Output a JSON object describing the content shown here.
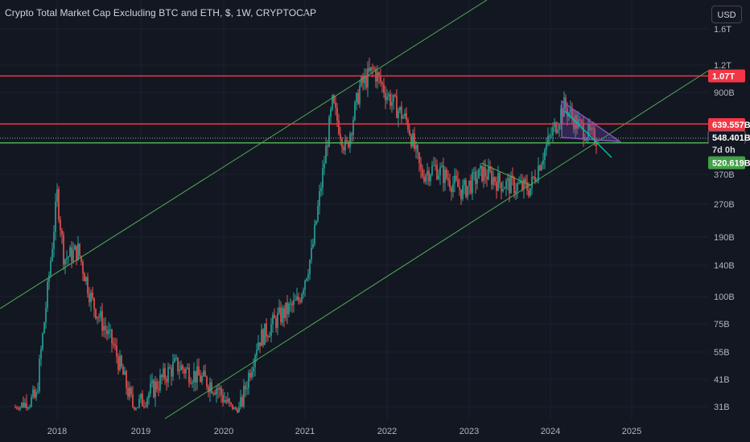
{
  "header": {
    "title": "Crypto Total Market Cap Excluding BTC and ETH, $, 1W, CRYPTOCAP",
    "currency_button": "USD"
  },
  "colors": {
    "background": "#131722",
    "grid": "#1e222d",
    "up_candle": "#26a69a",
    "down_candle": "#ef5350",
    "resistance_line": "#f23645",
    "support_line": "#4caf50",
    "channel_line": "#4caf50",
    "wedge_fill": "#7e57c2",
    "diagonal_cyan": "#00bfa5"
  },
  "chart_data": {
    "type": "candlestick",
    "title": "Crypto Total Market Cap Excluding BTC and ETH, $, 1W, CRYPTOCAP",
    "y_scale": "log",
    "x_tick_labels": [
      "2018",
      "2019",
      "2020",
      "2021",
      "2022",
      "2023",
      "2024",
      "2025"
    ],
    "y_tick_labels": [
      "1.6T",
      "1.2T",
      "900B",
      "370B",
      "270B",
      "190B",
      "140B",
      "100B",
      "75B",
      "55B",
      "41B",
      "31B"
    ],
    "price_labels": [
      {
        "text": "1.07T",
        "kind": "resistance"
      },
      {
        "text": "639.557B",
        "kind": "resistance"
      },
      {
        "text": "548.401B",
        "kind": "last-price"
      },
      {
        "text": "7d 0h",
        "kind": "countdown"
      },
      {
        "text": "520.619B",
        "kind": "support"
      }
    ],
    "weekly_close_path": [
      {
        "date": "2017-07",
        "value": 30
      },
      {
        "date": "2017-10",
        "value": 34
      },
      {
        "date": "2017-12",
        "value": 140
      },
      {
        "date": "2018-01",
        "value": 300
      },
      {
        "date": "2018-02",
        "value": 150
      },
      {
        "date": "2018-04",
        "value": 165
      },
      {
        "date": "2018-06",
        "value": 95
      },
      {
        "date": "2018-09",
        "value": 60
      },
      {
        "date": "2018-12",
        "value": 30
      },
      {
        "date": "2019-06",
        "value": 48
      },
      {
        "date": "2019-12",
        "value": 38
      },
      {
        "date": "2020-03",
        "value": 27
      },
      {
        "date": "2020-06",
        "value": 62
      },
      {
        "date": "2020-09",
        "value": 80
      },
      {
        "date": "2020-12",
        "value": 95
      },
      {
        "date": "2021-02",
        "value": 160
      },
      {
        "date": "2021-05",
        "value": 800
      },
      {
        "date": "2021-07",
        "value": 480
      },
      {
        "date": "2021-09",
        "value": 950
      },
      {
        "date": "2021-11",
        "value": 1150
      },
      {
        "date": "2022-01",
        "value": 880
      },
      {
        "date": "2022-04",
        "value": 650
      },
      {
        "date": "2022-06",
        "value": 370
      },
      {
        "date": "2022-08",
        "value": 400
      },
      {
        "date": "2022-12",
        "value": 310
      },
      {
        "date": "2023-03",
        "value": 380
      },
      {
        "date": "2023-06",
        "value": 335
      },
      {
        "date": "2023-10",
        "value": 320
      },
      {
        "date": "2023-12",
        "value": 470
      },
      {
        "date": "2024-03",
        "value": 780
      },
      {
        "date": "2024-05",
        "value": 640
      },
      {
        "date": "2024-07",
        "value": 560
      },
      {
        "date": "2024-08",
        "value": 548
      }
    ],
    "horizontal_levels": [
      {
        "value": 1070,
        "kind": "resistance"
      },
      {
        "value": 639.557,
        "kind": "resistance"
      },
      {
        "value": 548.401,
        "kind": "last-price"
      },
      {
        "value": 520.619,
        "kind": "support"
      }
    ],
    "grid": true,
    "legend": "none"
  }
}
